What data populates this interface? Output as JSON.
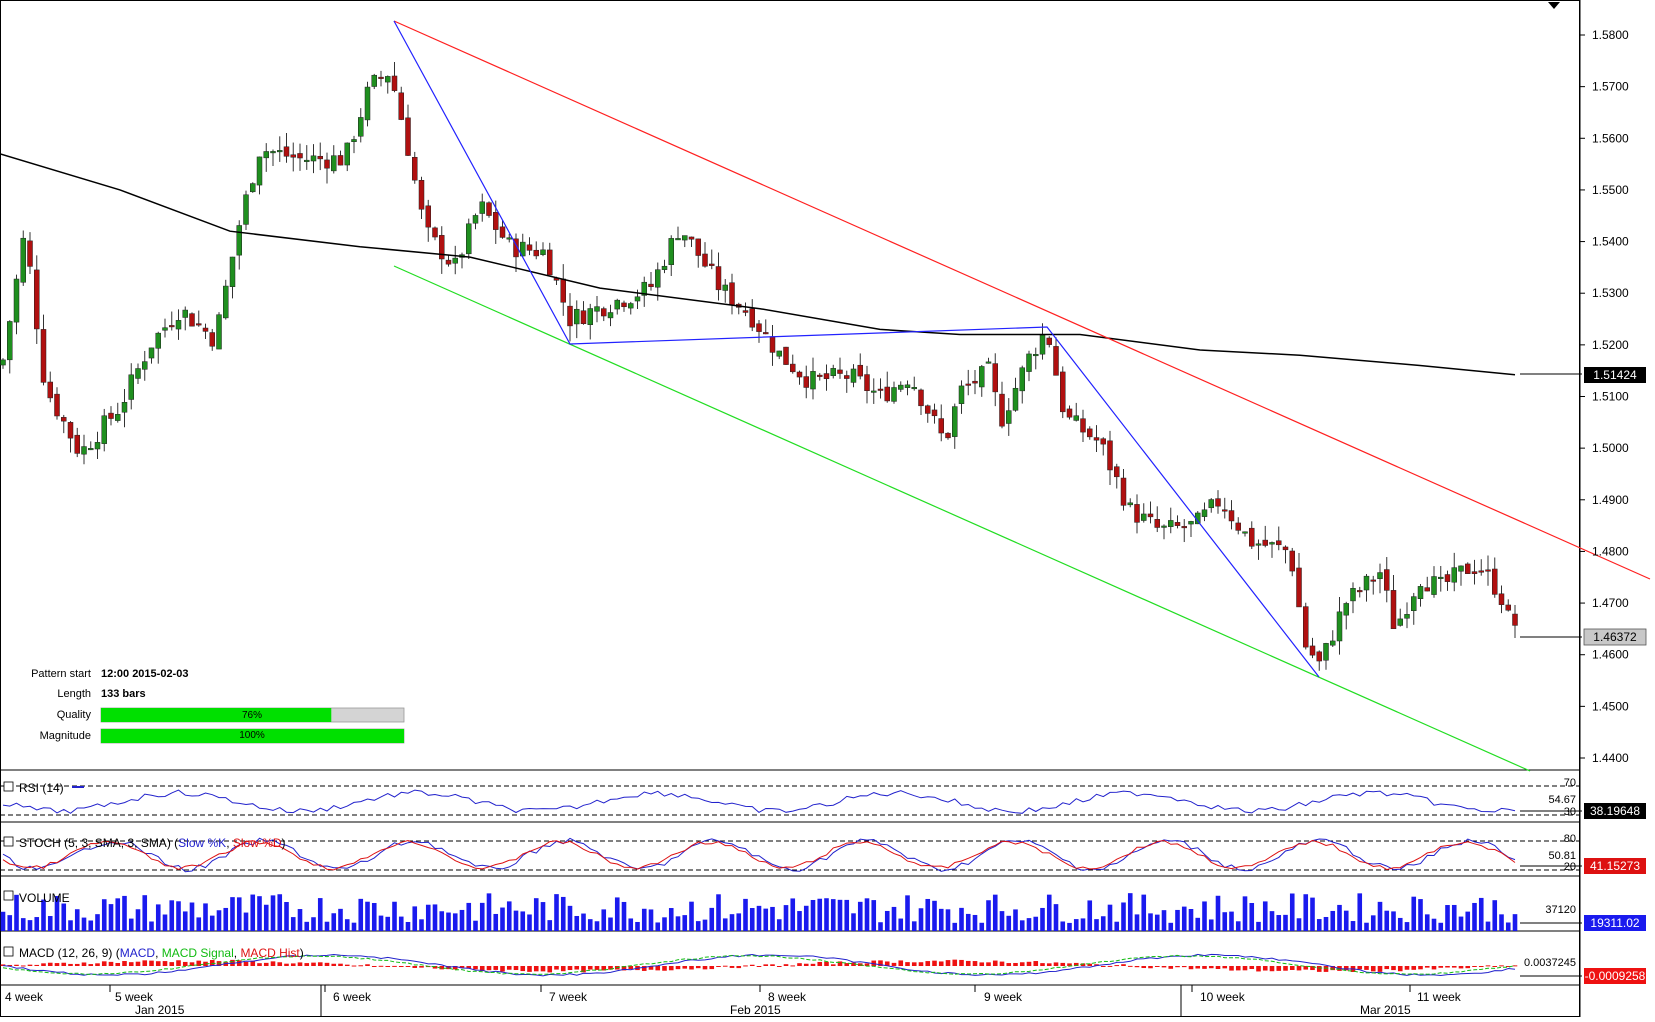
{
  "main": {
    "price_ticks": [
      "1.5800",
      "1.5700",
      "1.5600",
      "1.5500",
      "1.5400",
      "1.5300",
      "1.5200",
      "1.5100",
      "1.5000",
      "1.4900",
      "1.4800",
      "1.4700",
      "1.4600",
      "1.4500",
      "1.4400"
    ],
    "ma_label": "1.51424",
    "price_label": "1.46372",
    "colors": {
      "up": "#1f8f1f",
      "down": "#b01010",
      "upper_line": "#ff0000",
      "lower_line": "#00dd00",
      "pattern": "#1a1aff",
      "ma": "#000000",
      "label_dark": "#000000",
      "label_gray": "#c8c8c8"
    }
  },
  "pattern_info": {
    "start_label": "Pattern start",
    "start_value": "12:00 2015-02-03",
    "length_label": "Length",
    "length_value": "133 bars",
    "quality_label": "Quality",
    "quality_value": "76%",
    "quality_fraction": 0.76,
    "magnitude_label": "Magnitude",
    "magnitude_value": "100%",
    "magnitude_fraction": 1.0
  },
  "rsi": {
    "title": "RSI (14)",
    "levels": [
      "70",
      "54.67",
      "30"
    ],
    "value": "38.19648"
  },
  "stoch": {
    "title_prefix": "STOCH (5, 3, SMA, 3, SMA)",
    "k_label": "Slow %K",
    "d_label": "Slow %D",
    "levels": [
      "80",
      "50.81",
      "20"
    ],
    "value": "41.15273"
  },
  "volume": {
    "title": "VOLUME",
    "level": "37120",
    "value": "19311.02"
  },
  "macd": {
    "title_prefix": "MACD (12, 26, 9)",
    "line_label": "MACD",
    "signal_label": "MACD Signal",
    "hist_label": "MACD Hist",
    "level": "0.0037245",
    "value": "-0.0009258"
  },
  "time_axis": {
    "weeks": [
      "4 week",
      "5 week",
      "6 week",
      "7 week",
      "8 week",
      "9 week",
      "10 week",
      "11 week"
    ],
    "months": [
      "Jan 2015",
      "Feb 2015",
      "Mar 2015"
    ]
  },
  "chart_data": {
    "type": "candlestick",
    "symbol_timeframe": "12-hour bars",
    "price_axis_range": [
      1.437,
      1.583
    ],
    "moving_average_last": 1.51424,
    "last_price": 1.46372,
    "candles_approx": [
      {
        "x_frac": 0.0,
        "o": 1.51,
        "h": 1.52,
        "l": 1.507,
        "c": 1.519
      },
      {
        "x_frac": 0.02,
        "o": 1.54,
        "h": 1.544,
        "l": 1.532,
        "c": 1.543
      },
      {
        "x_frac": 0.05,
        "o": 1.51,
        "h": 1.517,
        "l": 1.503,
        "c": 1.512
      },
      {
        "x_frac": 0.06,
        "o": 1.513,
        "h": 1.516,
        "l": 1.489,
        "c": 1.498
      },
      {
        "x_frac": 0.11,
        "o": 1.522,
        "h": 1.529,
        "l": 1.518,
        "c": 1.527
      },
      {
        "x_frac": 0.16,
        "o": 1.536,
        "h": 1.545,
        "l": 1.532,
        "c": 1.543
      },
      {
        "x_frac": 0.2,
        "o": 1.557,
        "h": 1.57,
        "l": 1.553,
        "c": 1.56
      },
      {
        "x_frac": 0.24,
        "o": 1.556,
        "h": 1.578,
        "l": 1.552,
        "c": 1.576
      },
      {
        "x_frac": 0.25,
        "o": 1.576,
        "h": 1.582,
        "l": 1.562,
        "c": 1.564
      },
      {
        "x_frac": 0.28,
        "o": 1.542,
        "h": 1.551,
        "l": 1.536,
        "c": 1.544
      },
      {
        "x_frac": 0.31,
        "o": 1.55,
        "h": 1.553,
        "l": 1.545,
        "c": 1.547
      },
      {
        "x_frac": 0.36,
        "o": 1.528,
        "h": 1.532,
        "l": 1.52,
        "c": 1.525
      },
      {
        "x_frac": 0.43,
        "o": 1.544,
        "h": 1.549,
        "l": 1.53,
        "c": 1.535
      },
      {
        "x_frac": 0.48,
        "o": 1.525,
        "h": 1.526,
        "l": 1.515,
        "c": 1.52
      },
      {
        "x_frac": 0.53,
        "o": 1.512,
        "h": 1.517,
        "l": 1.506,
        "c": 1.514
      },
      {
        "x_frac": 0.6,
        "o": 1.508,
        "h": 1.512,
        "l": 1.496,
        "c": 1.5
      },
      {
        "x_frac": 0.66,
        "o": 1.52,
        "h": 1.524,
        "l": 1.518,
        "c": 1.522
      },
      {
        "x_frac": 0.71,
        "o": 1.505,
        "h": 1.507,
        "l": 1.496,
        "c": 1.499
      },
      {
        "x_frac": 0.72,
        "o": 1.487,
        "h": 1.49,
        "l": 1.484,
        "c": 1.486
      },
      {
        "x_frac": 0.77,
        "o": 1.489,
        "h": 1.492,
        "l": 1.487,
        "c": 1.49
      },
      {
        "x_frac": 0.82,
        "o": 1.46,
        "h": 1.464,
        "l": 1.456,
        "c": 1.458
      },
      {
        "x_frac": 0.85,
        "o": 1.47,
        "h": 1.482,
        "l": 1.466,
        "c": 1.476
      },
      {
        "x_frac": 0.88,
        "o": 1.474,
        "h": 1.48,
        "l": 1.46,
        "c": 1.464
      },
      {
        "x_frac": 0.91,
        "o": 1.476,
        "h": 1.481,
        "l": 1.474,
        "c": 1.479
      },
      {
        "x_frac": 0.94,
        "o": 1.478,
        "h": 1.488,
        "l": 1.476,
        "c": 1.481
      },
      {
        "x_frac": 0.97,
        "o": 1.476,
        "h": 1.478,
        "l": 1.468,
        "c": 1.47
      },
      {
        "x_frac": 0.99,
        "o": 1.469,
        "h": 1.47,
        "l": 1.46,
        "c": 1.464
      }
    ]
  }
}
